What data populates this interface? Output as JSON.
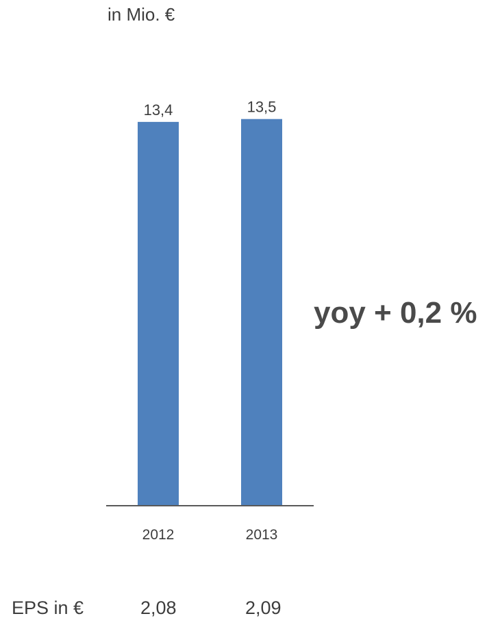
{
  "unit_label": "in Mio. €",
  "chart_data": {
    "type": "bar",
    "categories": [
      "2012",
      "2013"
    ],
    "values": [
      13.4,
      13.5
    ],
    "value_labels": [
      "13,4",
      "13,5"
    ],
    "title": "",
    "xlabel": "",
    "ylabel": "in Mio. €",
    "ylim": [
      0,
      15
    ],
    "grid": false,
    "legend": "none",
    "bar_color": "#4f81bd",
    "axis_color": "#595959"
  },
  "annotation": {
    "yoy": "yoy + 0,2 %"
  },
  "eps": {
    "label": "EPS in €",
    "values": [
      "2,08",
      "2,09"
    ]
  }
}
